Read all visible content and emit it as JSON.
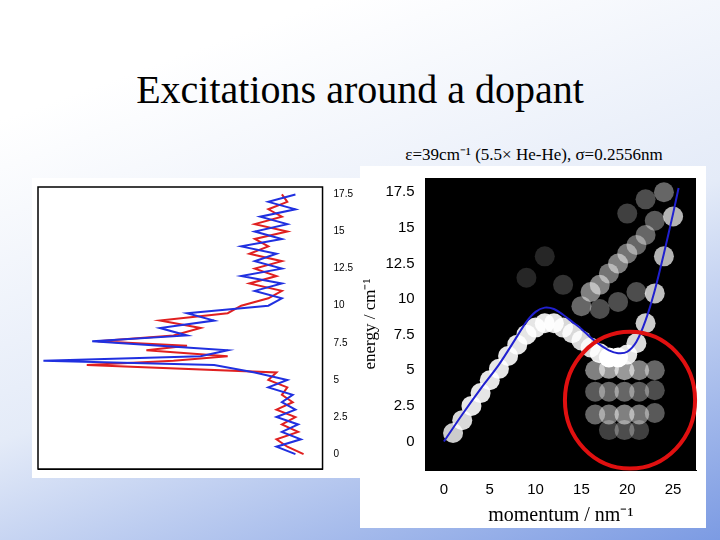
{
  "title": "Excitations around a dopant",
  "subtitle": "ε=39cm⁻¹ (5.5× He-He), σ=0.2556nm",
  "chart_data": [
    {
      "type": "line",
      "y": [
        0,
        0.5,
        1,
        1.5,
        2,
        2.5,
        3,
        3.5,
        4,
        4.5,
        5,
        5.5,
        6,
        6.3,
        6.6,
        7,
        7.3,
        7.6,
        8,
        8.5,
        9,
        9.5,
        10,
        10.5,
        11,
        11.5,
        12,
        12.5,
        13,
        13.5,
        14,
        14.5,
        15,
        15.5,
        16,
        16.5,
        17,
        17.5
      ],
      "series": [
        {
          "color": "#2030e0",
          "values": [
            0.05,
            0.12,
            0.03,
            0.1,
            0.04,
            0.12,
            0.05,
            0.1,
            0.06,
            0.15,
            0.08,
            0.2,
            0.35,
            0.98,
            0.4,
            0.3,
            0.55,
            0.8,
            0.45,
            0.55,
            0.35,
            0.45,
            0.15,
            0.1,
            0.2,
            0.1,
            0.25,
            0.1,
            0.2,
            0.12,
            0.25,
            0.1,
            0.2,
            0.08,
            0.18,
            0.05,
            0.15,
            0.05
          ]
        },
        {
          "color": "#e02020",
          "values": [
            0.02,
            0.08,
            0.12,
            0.04,
            0.1,
            0.05,
            0.12,
            0.06,
            0.1,
            0.08,
            0.15,
            0.12,
            0.82,
            0.5,
            0.3,
            0.6,
            0.45,
            0.78,
            0.5,
            0.4,
            0.55,
            0.3,
            0.25,
            0.15,
            0.1,
            0.22,
            0.12,
            0.2,
            0.1,
            0.22,
            0.15,
            0.2,
            0.08,
            0.2,
            0.1,
            0.15,
            0.08,
            0.1
          ]
        }
      ],
      "xlim": [
        1.0,
        -0.05
      ],
      "ylim": [
        -1,
        18
      ],
      "yticks": [
        0,
        2.5,
        5,
        7.5,
        10,
        12.5,
        15,
        17.5
      ],
      "tick_labels": "y",
      "grid": false
    },
    {
      "type": "scatter",
      "x_label": "momentum / nm⁻¹",
      "y_label": "energy / cm⁻¹",
      "xlim": [
        -2,
        27.5
      ],
      "ylim": [
        -2,
        18.5
      ],
      "xticks": [
        0,
        5,
        10,
        15,
        20,
        25
      ],
      "yticks": [
        0,
        2.5,
        5,
        7.5,
        10,
        12.5,
        15,
        17.5
      ],
      "grid": false,
      "cells": {
        "x": [
          1,
          2,
          3,
          4,
          5,
          6,
          7,
          8,
          9,
          10,
          11,
          12,
          13,
          14,
          15,
          16,
          17,
          18,
          19,
          20,
          21,
          22,
          23,
          24,
          25,
          15,
          16,
          17,
          18,
          19,
          20,
          21,
          22,
          23,
          17,
          19,
          21,
          13,
          11,
          9,
          16.5,
          18,
          19.7,
          21.3,
          23,
          16.5,
          18,
          19.7,
          21.3,
          23,
          16.5,
          18,
          19.7,
          21.3,
          23,
          18,
          19.7,
          21.3,
          24,
          22,
          20
        ],
        "y": [
          0.6,
          1.5,
          2.5,
          3.4,
          4.3,
          5.1,
          6.0,
          6.8,
          7.5,
          8.0,
          8.3,
          8.3,
          8.0,
          7.6,
          7.1,
          6.6,
          6.2,
          5.9,
          5.9,
          6.1,
          6.9,
          8.3,
          10.4,
          13.0,
          15.8,
          9.5,
          10.5,
          11,
          11.8,
          12.5,
          13.2,
          13.8,
          14.5,
          15.5,
          9.3,
          9.8,
          10.5,
          11,
          13,
          11.5,
          5,
          5.1,
          5,
          5,
          5,
          3.5,
          3.5,
          3.5,
          3.5,
          3.6,
          1.9,
          1.9,
          1.9,
          1.9,
          2,
          0.8,
          0.8,
          0.8,
          17.5,
          17,
          16
        ],
        "values": [
          0.8,
          0.85,
          0.9,
          0.9,
          0.9,
          0.9,
          0.9,
          0.9,
          0.9,
          0.9,
          0.9,
          0.9,
          0.85,
          0.85,
          0.85,
          0.85,
          0.9,
          1,
          1,
          0.9,
          0.85,
          0.8,
          0.75,
          0.7,
          0.7,
          0.4,
          0.5,
          0.5,
          0.45,
          0.5,
          0.45,
          0.4,
          0.4,
          0.35,
          0.3,
          0.3,
          0.3,
          0.2,
          0.15,
          0.15,
          0.5,
          0.6,
          0.6,
          0.5,
          0.4,
          0.35,
          0.4,
          0.4,
          0.35,
          0.3,
          0.4,
          0.45,
          0.5,
          0.45,
          0.35,
          0.25,
          0.3,
          0.25,
          0.4,
          0.3,
          0.25
        ]
      },
      "series": [
        {
          "color": "#2020d0",
          "x": [
            0,
            2,
            4,
            6,
            8,
            9,
            10,
            11,
            12,
            13,
            14,
            15,
            16,
            17,
            18,
            19,
            20,
            21,
            22,
            23,
            24,
            25,
            25.6
          ],
          "values": [
            0,
            1.9,
            3.7,
            5.4,
            7.4,
            8.4,
            9.1,
            9.4,
            9.3,
            8.9,
            8.4,
            7.9,
            7.3,
            6.8,
            6.4,
            6.2,
            6.3,
            7.0,
            8.5,
            10.6,
            13.2,
            16.0,
            17.8
          ]
        }
      ],
      "ellipse": {
        "x": [
          13.2,
          27.4
        ],
        "y": [
          -1.9,
          7.7
        ],
        "color": "#e01010"
      }
    }
  ]
}
